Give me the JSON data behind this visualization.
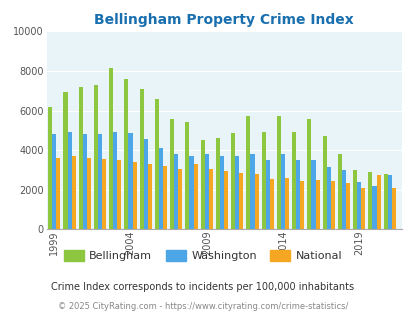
{
  "title": "Bellingham Property Crime Index",
  "title_color": "#1a6faf",
  "subtitle": "Crime Index corresponds to incidents per 100,000 inhabitants",
  "footer": "© 2025 CityRating.com - https://www.cityrating.com/crime-statistics/",
  "years": [
    1999,
    2000,
    2001,
    2002,
    2003,
    2004,
    2005,
    2006,
    2007,
    2008,
    2009,
    2010,
    2011,
    2012,
    2013,
    2014,
    2015,
    2016,
    2017,
    2018,
    2019,
    2020,
    2021
  ],
  "bellingham": [
    6200,
    6950,
    7200,
    7300,
    8150,
    7600,
    7100,
    6600,
    5550,
    5400,
    4500,
    4600,
    4850,
    5700,
    4900,
    5700,
    4900,
    5550,
    4700,
    3800,
    3000,
    2900,
    2800
  ],
  "washington": [
    4800,
    4900,
    4800,
    4800,
    4900,
    4850,
    4550,
    4100,
    3800,
    3700,
    3800,
    3700,
    3700,
    3800,
    3500,
    3800,
    3500,
    3500,
    3150,
    3000,
    2400,
    2200,
    2750
  ],
  "national": [
    3600,
    3700,
    3600,
    3550,
    3500,
    3400,
    3300,
    3200,
    3050,
    3300,
    3050,
    2950,
    2850,
    2800,
    2550,
    2600,
    2450,
    2500,
    2450,
    2350,
    2100,
    2750,
    2100
  ],
  "bellingham_color": "#8dc63f",
  "washington_color": "#4da6e8",
  "national_color": "#f5a623",
  "bg_color": "#e8f4f8",
  "ylim": [
    0,
    10000
  ],
  "yticks": [
    0,
    2000,
    4000,
    6000,
    8000,
    10000
  ],
  "xtick_labels": [
    "1999",
    "2004",
    "2009",
    "2014",
    "2019"
  ],
  "xtick_positions": [
    1999,
    2004,
    2009,
    2014,
    2019
  ],
  "legend_labels": [
    "Bellingham",
    "Washington",
    "National"
  ],
  "bar_width": 0.27
}
